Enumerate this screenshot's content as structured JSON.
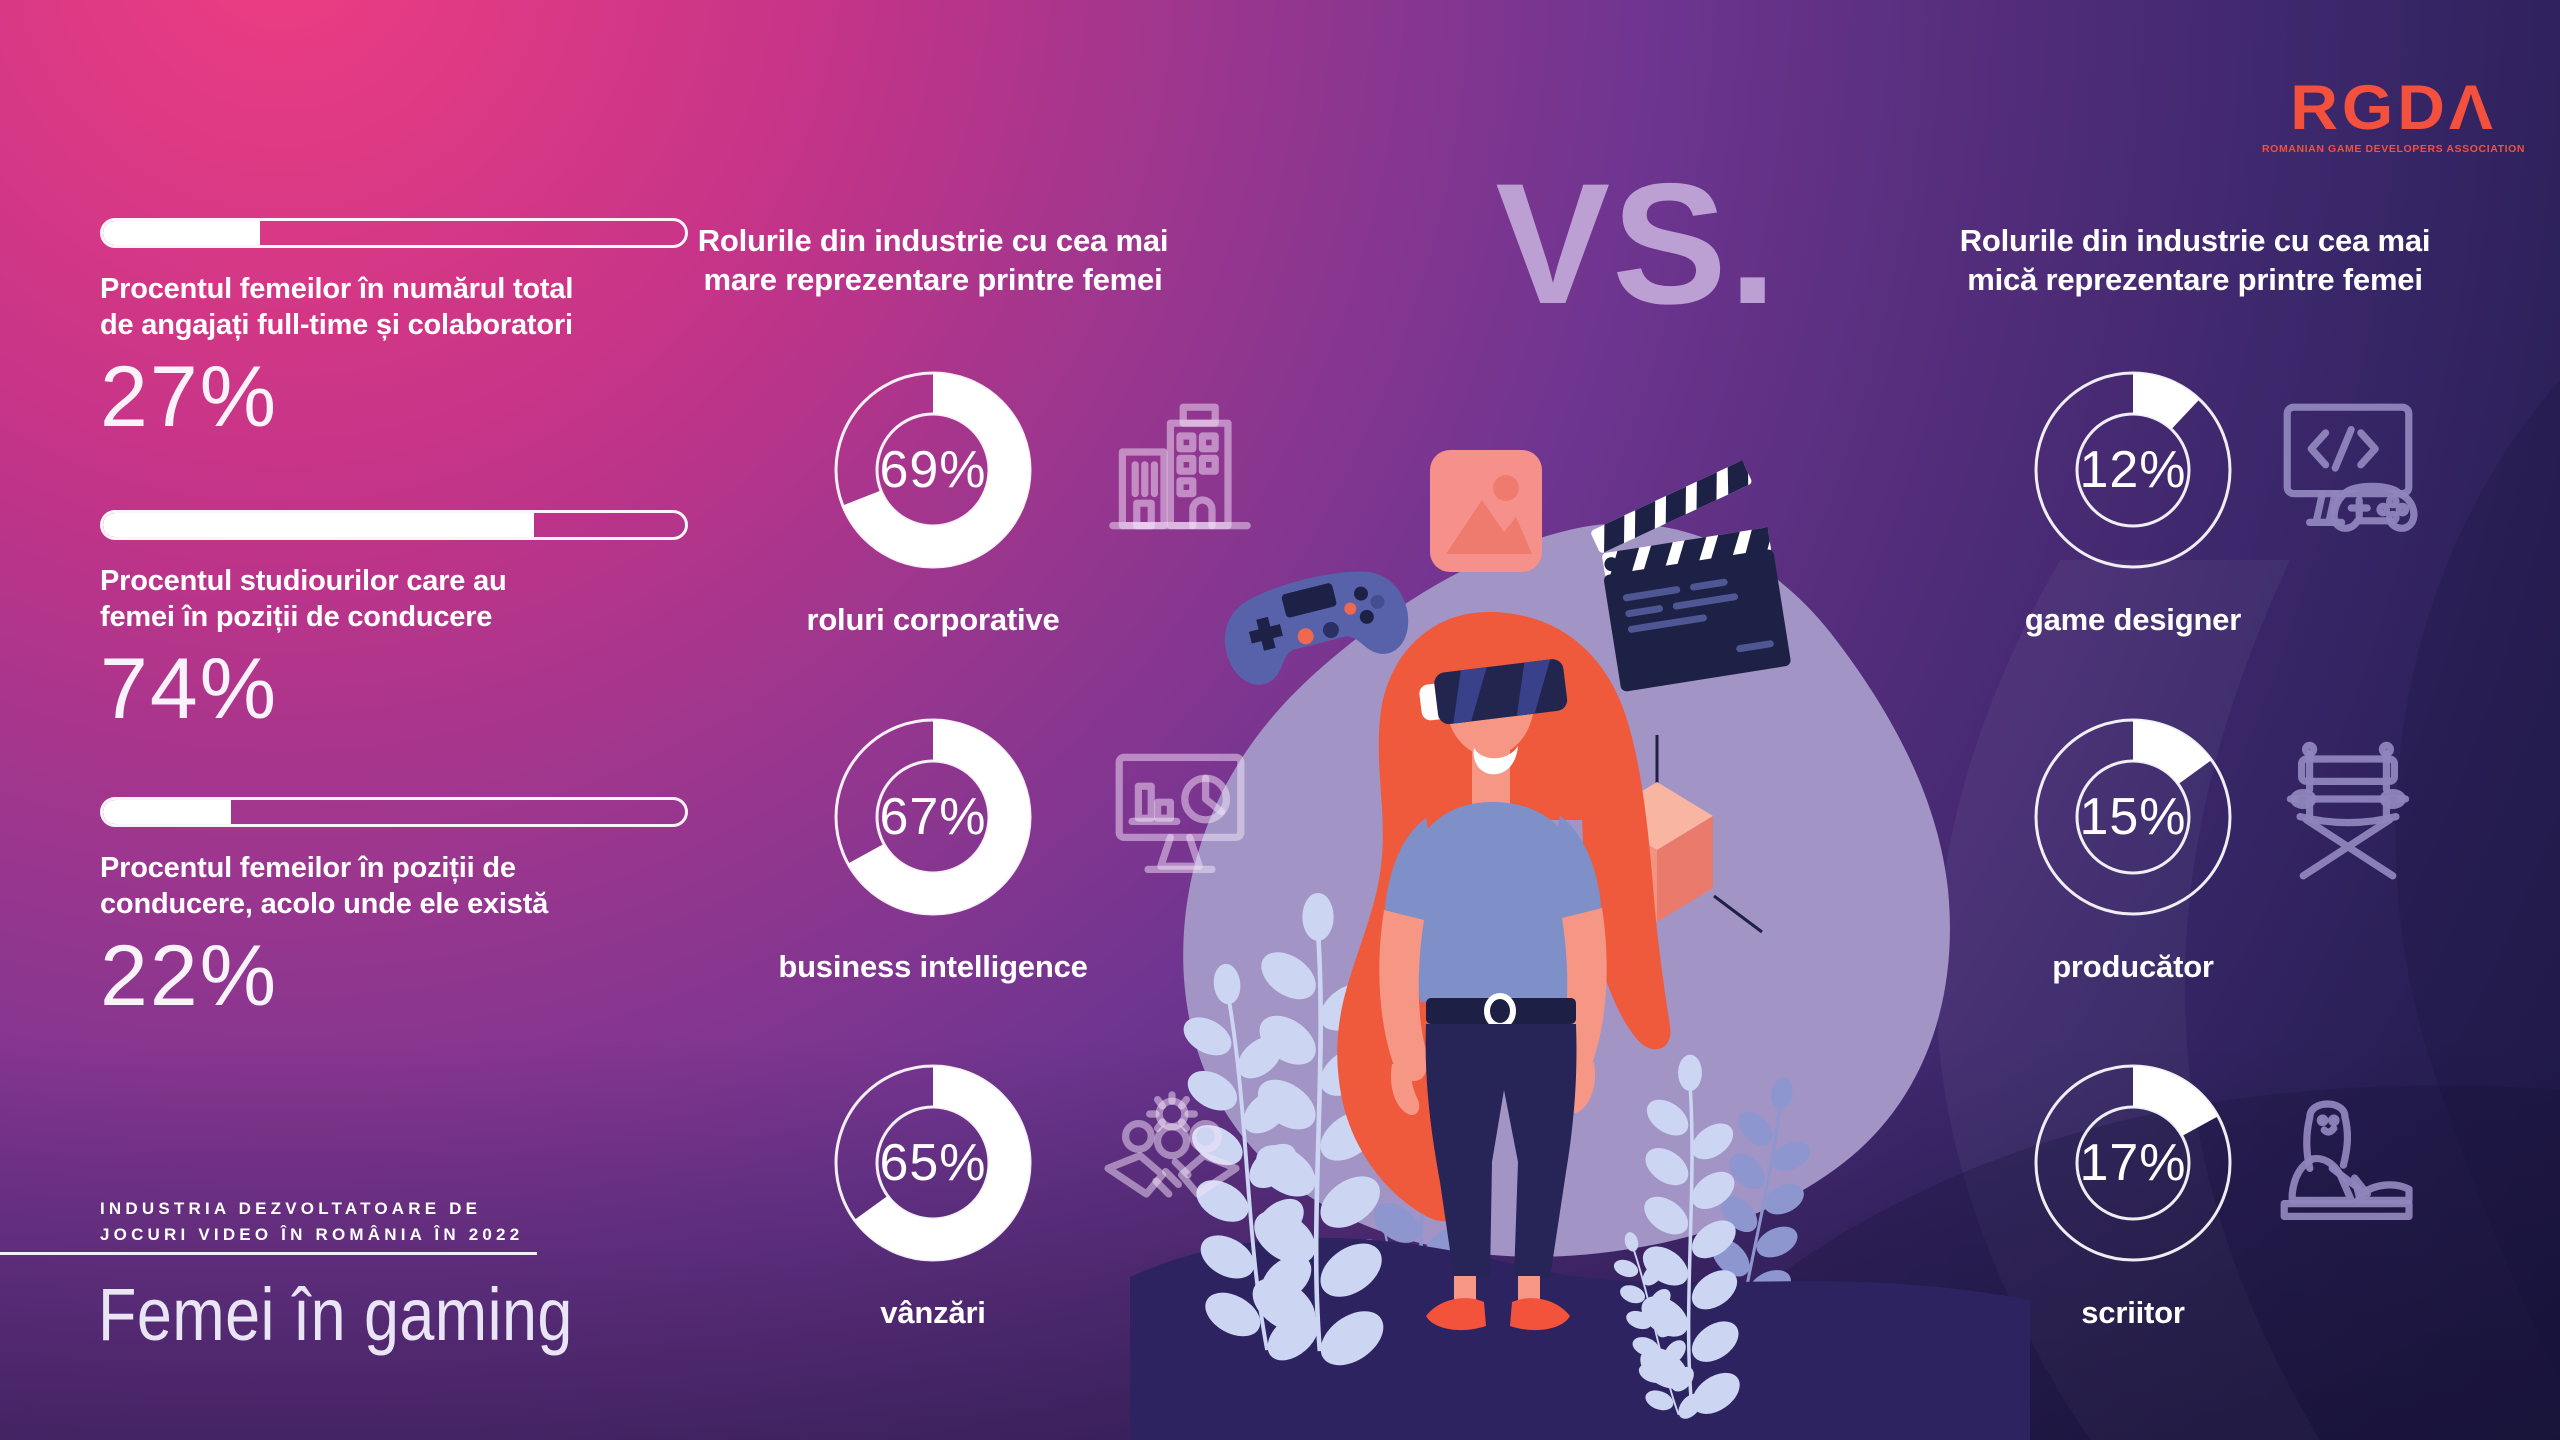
{
  "logo": {
    "display": "RGDΛ",
    "tagline": "ROMANIAN GAME DEVELOPERS ASSOCIATION",
    "color": "#f3503d"
  },
  "vs_label": "VS.",
  "footer": {
    "eyebrow_lines": [
      "INDUSTRIA DEZVOLTATOARE DE",
      "JOCURI VIDEO ÎN ROMÂNIA ÎN 2022"
    ],
    "title": "Femei în gaming"
  },
  "stats": [
    {
      "label_lines": [
        "Procentul femeilor în numărul total",
        "de angajați full-time și colaboratori"
      ],
      "value": 27,
      "value_label": "27%"
    },
    {
      "label_lines": [
        "Procentul studiourilor care au",
        "femei în poziții de conducere"
      ],
      "value": 74,
      "value_label": "74%"
    },
    {
      "label_lines": [
        "Procentul femeilor în poziții de",
        "conducere, acolo unde ele există"
      ],
      "value": 22,
      "value_label": "22%"
    }
  ],
  "most_column": {
    "title_lines": [
      "Rolurile din industrie cu cea mai",
      "mare reprezentare printre femei"
    ],
    "items": [
      {
        "pct": 69,
        "pct_label": "69%",
        "label": "roluri corporative",
        "icon": "office-building-icon"
      },
      {
        "pct": 67,
        "pct_label": "67%",
        "label": "business intelligence",
        "icon": "analytics-monitor-icon"
      },
      {
        "pct": 65,
        "pct_label": "65%",
        "label": "vânzări",
        "icon": "handshake-team-icon"
      }
    ]
  },
  "least_column": {
    "title_lines": [
      "Rolurile din industrie cu cea mai",
      "mică reprezentare printre femei"
    ],
    "items": [
      {
        "pct": 12,
        "pct_label": "12%",
        "label": "game designer",
        "icon": "code-gamepad-icon"
      },
      {
        "pct": 15,
        "pct_label": "15%",
        "label": "producător",
        "icon": "director-chair-icon"
      },
      {
        "pct": 17,
        "pct_label": "17%",
        "label": "scriitor",
        "icon": "writer-icon"
      }
    ]
  },
  "palette": {
    "background_top_left": "#ee3d82",
    "background_bottom_right": "#1f1a47",
    "accent_coral": "#f3503d",
    "vs_color": "#bc9fd3",
    "donut_fill": "#ffffff",
    "illustration_blob": "#a394c6"
  },
  "chart_data": [
    {
      "type": "bar",
      "title": "Femei în gaming — statistici generale",
      "categories": [
        "Procentul femeilor în numărul total de angajați full-time și colaboratori",
        "Procentul studiourilor care au femei în poziții de conducere",
        "Procentul femeilor în poziții de conducere, acolo unde ele există"
      ],
      "values": [
        27,
        74,
        22
      ],
      "unit": "%",
      "xlim": [
        0,
        100
      ]
    },
    {
      "type": "pie",
      "title": "Rolurile din industrie cu cea mai mare reprezentare printre femei",
      "categories": [
        "roluri corporative",
        "business intelligence",
        "vânzări"
      ],
      "values": [
        69,
        67,
        65
      ],
      "unit": "%"
    },
    {
      "type": "pie",
      "title": "Rolurile din industrie cu cea mai mică reprezentare printre femei",
      "categories": [
        "game designer",
        "producător",
        "scriitor"
      ],
      "values": [
        12,
        15,
        17
      ],
      "unit": "%"
    }
  ]
}
